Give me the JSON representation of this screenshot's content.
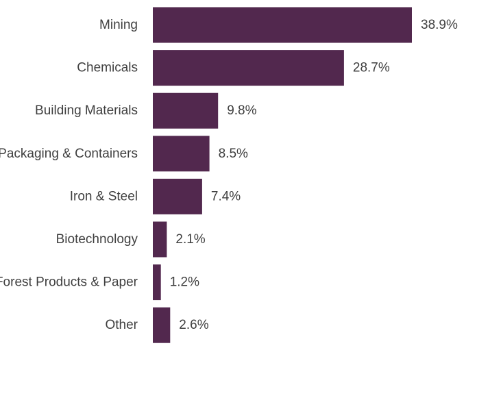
{
  "chart_data": {
    "type": "bar",
    "orientation": "horizontal",
    "categories": [
      "Mining",
      "Chemicals",
      "Building Materials",
      "Packaging & Containers",
      "Iron & Steel",
      "Biotechnology",
      "Forest Products & Paper",
      "Other"
    ],
    "values": [
      38.9,
      28.7,
      9.8,
      8.5,
      7.4,
      2.1,
      1.2,
      2.6
    ],
    "value_labels": [
      "38.9%",
      "28.7%",
      "9.8%",
      "8.5%",
      "7.4%",
      "2.1%",
      "1.2%",
      "2.6%"
    ],
    "xlim": [
      0,
      38.9
    ],
    "grid": false,
    "colors": {
      "bar": "#52284e",
      "text": "#3f3f3f"
    }
  }
}
